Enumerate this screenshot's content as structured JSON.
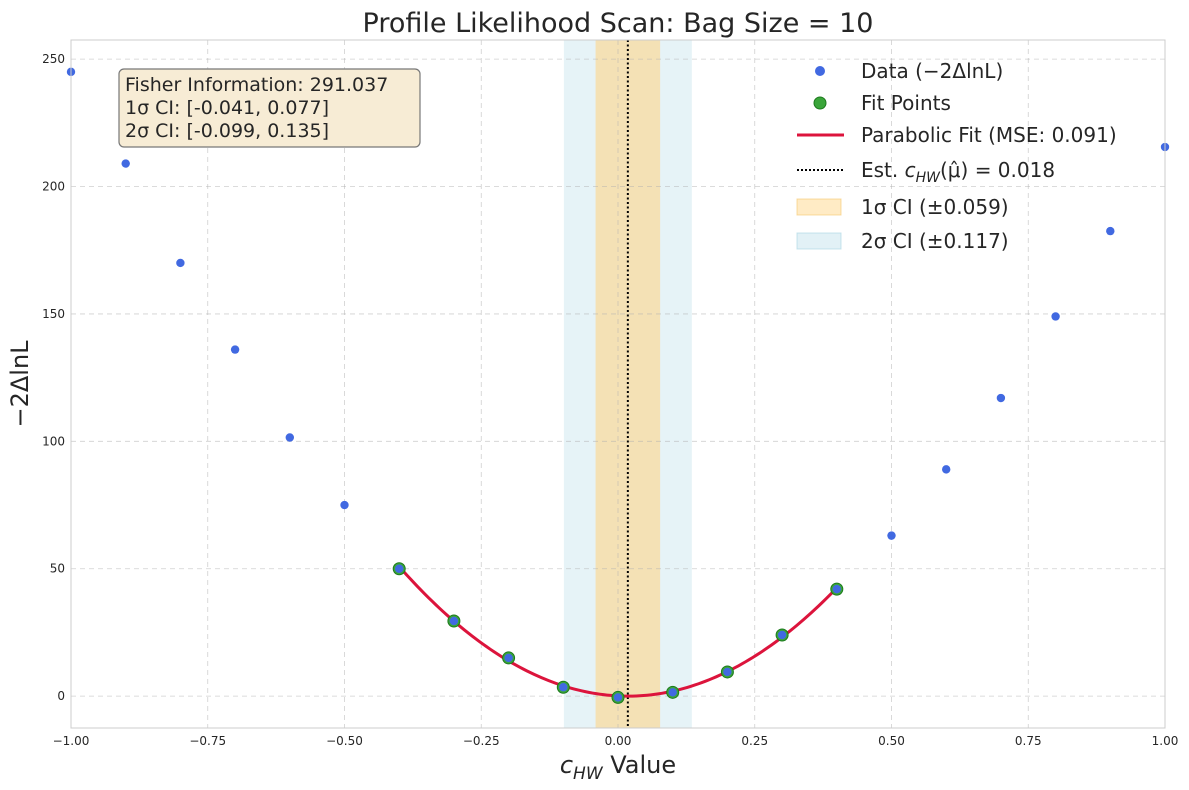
{
  "chart_data": {
    "type": "scatter",
    "title": "Profile Likelihood Scan: Bag Size = 10",
    "xlabel": {
      "var": "c",
      "sub": "HW",
      "rest": " Value"
    },
    "ylabel": "−2ΔlnL",
    "xlim": [
      -1.0,
      1.0
    ],
    "ylim": [
      -12.5,
      257.5
    ],
    "xticks": [
      -1.0,
      -0.75,
      -0.5,
      -0.25,
      0.0,
      0.25,
      0.5,
      0.75,
      1.0
    ],
    "xtick_labels": [
      "−1.00",
      "−0.75",
      "−0.50",
      "−0.25",
      "0.00",
      "0.25",
      "0.50",
      "0.75",
      "1.00"
    ],
    "yticks": [
      0,
      50,
      100,
      150,
      200,
      250
    ],
    "ytick_labels": [
      "0",
      "50",
      "100",
      "150",
      "200",
      "250"
    ],
    "grid": true,
    "legend_position": "top-right",
    "series": [
      {
        "name": "Data (−2ΔlnL)",
        "kind": "scatter",
        "color": "#4169e1",
        "x": [
          -1.0,
          -0.9,
          -0.8,
          -0.7,
          -0.6,
          -0.5,
          -0.4,
          -0.3,
          -0.2,
          -0.1,
          0.0,
          0.1,
          0.2,
          0.3,
          0.4,
          0.5,
          0.6,
          0.7,
          0.8,
          0.9,
          1.0
        ],
        "y": [
          245,
          209,
          170,
          136,
          101.5,
          75,
          50,
          29.5,
          15,
          3.5,
          -0.5,
          1.5,
          9.5,
          24,
          42,
          63,
          89,
          117,
          149,
          182.5,
          215.5
        ]
      },
      {
        "name": "Fit Points",
        "kind": "scatter",
        "color": "#3aa53a",
        "x": [
          -0.4,
          -0.3,
          -0.2,
          -0.1,
          0.0,
          0.1,
          0.2,
          0.3,
          0.4
        ],
        "y": [
          50,
          29.5,
          15,
          3.5,
          -0.5,
          1.5,
          9.5,
          24,
          42
        ]
      },
      {
        "name": "Parabolic Fit (MSE: 0.091)",
        "kind": "curve",
        "color": "#dc143c",
        "formula": "a*(x-mu)^2",
        "a": 291.037,
        "mu": 0.018,
        "x_range": [
          -0.4,
          0.4
        ]
      },
      {
        "name": "Est. c_HW(μ̂) = 0.018",
        "kind": "vline",
        "color": "#000000",
        "x": 0.018
      },
      {
        "name": "1σ CI (±0.059)",
        "kind": "band",
        "color": "#ffd27f",
        "x_range": [
          -0.041,
          0.077
        ]
      },
      {
        "name": "2σ CI (±0.117)",
        "kind": "band",
        "color": "#add8e6",
        "x_range": [
          -0.099,
          0.135
        ]
      }
    ],
    "legend": [
      {
        "label": "Data (−2ΔlnL)"
      },
      {
        "label": "Fit Points"
      },
      {
        "label": "Parabolic Fit (MSE: 0.091)"
      },
      {
        "label_prefix": "Est. ",
        "label_var": "c",
        "label_sub": "HW",
        "label_suffix": "(μ̂) = 0.018"
      },
      {
        "label": "1σ CI (±0.059)"
      },
      {
        "label": "2σ CI (±0.117)"
      }
    ],
    "annotation": {
      "lines": [
        "Fisher Information: 291.037",
        "1σ CI: [-0.041, 0.077]",
        "2σ CI: [-0.099, 0.135]"
      ],
      "bg": "#f7ecd5",
      "border": "#777777"
    }
  }
}
